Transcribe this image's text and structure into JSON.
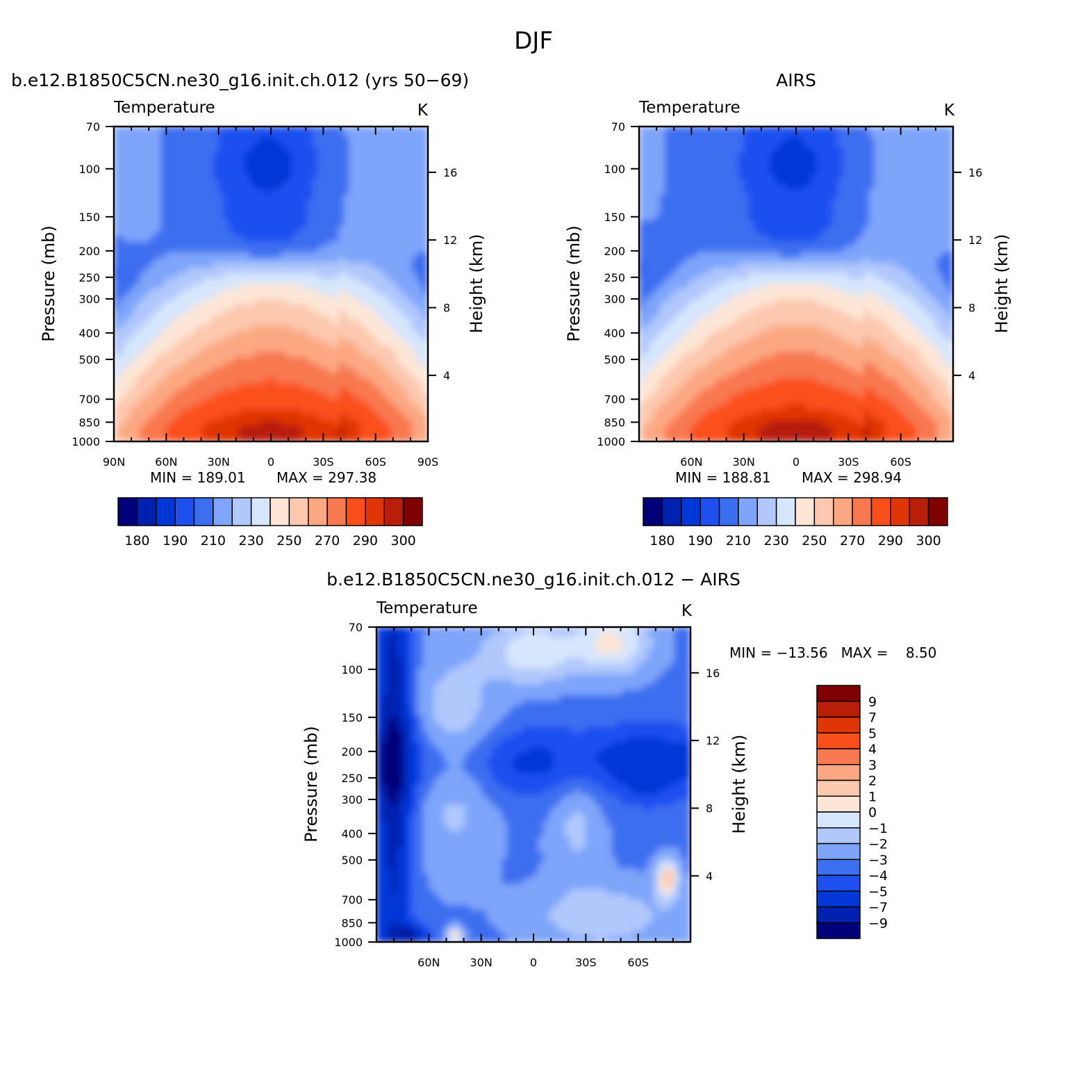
{
  "figure": {
    "title": "DJF"
  },
  "chart_data": [
    {
      "type": "heatmap",
      "title": "b.e12.B1850C5CN.ne30_g16.init.ch.012 (yrs 50−69)",
      "panel_label": "Temperature",
      "units": "K",
      "ylabel": "Pressure (mb)",
      "y2label": "Height (km)",
      "x_ticks": [
        "90N",
        "60N",
        "30N",
        "0",
        "30S",
        "60S",
        "90S"
      ],
      "y_ticks": [
        70,
        100,
        150,
        200,
        250,
        300,
        400,
        500,
        700,
        850,
        1000
      ],
      "y2_ticks": [
        4,
        8,
        12,
        16
      ],
      "min_label": "MIN = 189.01",
      "max_label": "MAX = 297.38",
      "colorbar": {
        "levels": [
          180,
          185,
          190,
          200,
          210,
          220,
          230,
          240,
          250,
          260,
          270,
          280,
          290,
          295,
          300
        ],
        "labels": [
          "180",
          "190",
          "210",
          "230",
          "250",
          "270",
          "290",
          "300"
        ],
        "colors": [
          "#00007a",
          "#0020b0",
          "#0038d8",
          "#1e50f0",
          "#3c6ef0",
          "#7ea5fa",
          "#b0c8fc",
          "#d6e6fc",
          "#fde6d6",
          "#fcc8ae",
          "#fba882",
          "#f87850",
          "#fb4f1b",
          "#e03505",
          "#b81e08",
          "#800000"
        ]
      },
      "min": 189.01,
      "max": 297.38
    },
    {
      "type": "heatmap",
      "title": "AIRS",
      "panel_label": "Temperature",
      "units": "K",
      "ylabel": "Pressure (mb)",
      "y2label": "Height (km)",
      "x_ticks": [
        "60N",
        "30N",
        "0",
        "30S",
        "60S"
      ],
      "y_ticks": [
        70,
        100,
        150,
        200,
        250,
        300,
        400,
        500,
        700,
        850,
        1000
      ],
      "y2_ticks": [
        4,
        8,
        12,
        16
      ],
      "min_label": "MIN = 188.81",
      "max_label": "MAX = 298.94",
      "colorbar": {
        "levels": [
          180,
          185,
          190,
          200,
          210,
          220,
          230,
          240,
          250,
          260,
          270,
          280,
          290,
          295,
          300
        ],
        "labels": [
          "180",
          "190",
          "210",
          "230",
          "250",
          "270",
          "290",
          "300"
        ],
        "colors": [
          "#00007a",
          "#0020b0",
          "#0038d8",
          "#1e50f0",
          "#3c6ef0",
          "#7ea5fa",
          "#b0c8fc",
          "#d6e6fc",
          "#fde6d6",
          "#fcc8ae",
          "#fba882",
          "#f87850",
          "#fb4f1b",
          "#e03505",
          "#b81e08",
          "#800000"
        ]
      },
      "min": 188.81,
      "max": 298.94
    },
    {
      "type": "heatmap",
      "title": "b.e12.B1850C5CN.ne30_g16.init.ch.012 − AIRS",
      "panel_label": "Temperature",
      "units": "K",
      "ylabel": "Pressure (mb)",
      "y2label": "Height (km)",
      "x_ticks": [
        "60N",
        "30N",
        "0",
        "30S",
        "60S"
      ],
      "y_ticks": [
        70,
        100,
        150,
        200,
        250,
        300,
        400,
        500,
        700,
        850,
        1000
      ],
      "y2_ticks": [
        4,
        8,
        12,
        16
      ],
      "stat_label": "MIN = −13.56   MAX =    8.50",
      "colorbar": {
        "labels": [
          "9",
          "7",
          "5",
          "4",
          "3",
          "2",
          "1",
          "0",
          "−1",
          "−2",
          "−3",
          "−4",
          "−5",
          "−7",
          "−9"
        ],
        "colors": [
          "#800000",
          "#b81e08",
          "#e03505",
          "#fb4f1b",
          "#f87850",
          "#fba882",
          "#fcc8ae",
          "#fde6d6",
          "#d6e6fc",
          "#b0c8fc",
          "#7ea5fa",
          "#3c6ef0",
          "#1e50f0",
          "#0038d8",
          "#0020b0",
          "#00007a"
        ]
      },
      "min": -13.56,
      "max": 8.5
    }
  ]
}
